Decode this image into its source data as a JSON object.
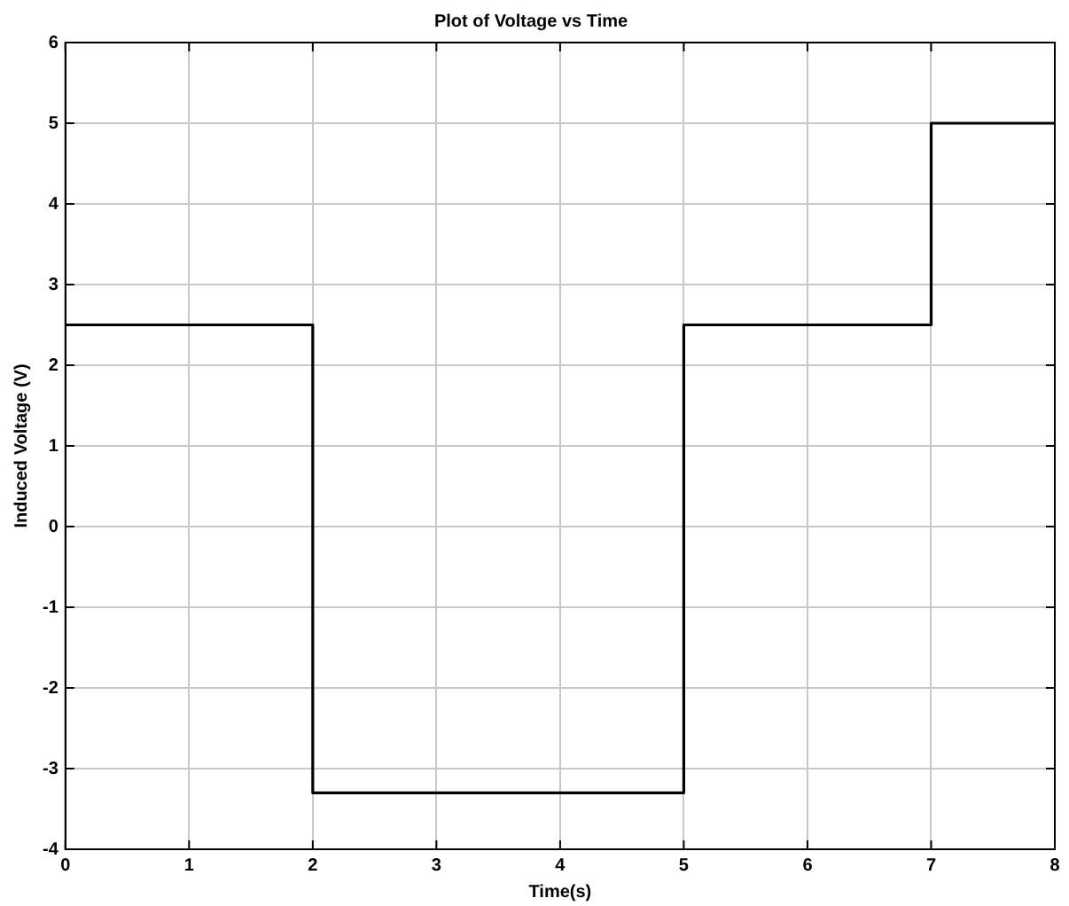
{
  "chart_data": {
    "type": "step",
    "title": "Plot of Voltage vs Time",
    "xlabel": "Time(s)",
    "ylabel": "Induced Voltage (V)",
    "x": [
      0,
      2,
      5,
      7,
      8
    ],
    "series": [
      {
        "color": "#000000",
        "values": [
          2.5,
          -3.3,
          2.5,
          5,
          5
        ]
      }
    ],
    "xlim": [
      0,
      8
    ],
    "xticks": [
      0,
      1,
      2,
      3,
      4,
      5,
      6,
      7,
      8
    ],
    "ylim": [
      -4,
      6
    ],
    "yticks": [
      -4,
      -3,
      -2,
      -1,
      0,
      1,
      2,
      3,
      4,
      5,
      6
    ],
    "grid": true,
    "legend": false,
    "marker": "none",
    "line_style": "solid"
  }
}
